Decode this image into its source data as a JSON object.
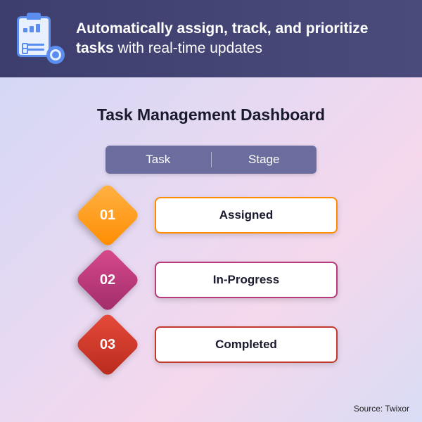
{
  "header": {
    "bold_part": "Automatically assign, track, and prioritize tasks",
    "rest_part": " with real-time updates",
    "bg_gradient_from": "#3d3e6d",
    "bg_gradient_to": "#4a4b7a"
  },
  "body": {
    "title": "Task Management Dashboard",
    "table_header_bg": "#6b6d9e",
    "columns": {
      "col1": "Task",
      "col2": "Stage"
    },
    "rows": [
      {
        "num": "01",
        "label": "Assigned",
        "diamond_gradient_from": "#ffb347",
        "diamond_gradient_to": "#ff8c00",
        "border_color": "#ff8c00",
        "connector_color": "#ff8c00"
      },
      {
        "num": "02",
        "label": "In-Progress",
        "diamond_gradient_from": "#d94a8c",
        "diamond_gradient_to": "#a02c6b",
        "border_color": "#b83a7a",
        "connector_color": "#b83a7a"
      },
      {
        "num": "03",
        "label": "Completed",
        "diamond_gradient_from": "#e74c3c",
        "diamond_gradient_to": "#b8291b",
        "border_color": "#c0392b",
        "connector_color": "#c0392b"
      }
    ]
  },
  "source_label": "Source: Twixor",
  "background_gradient": {
    "stops": [
      "#d4d8f5",
      "#e8d9f2",
      "#f5d8ec",
      "#d8dcf5"
    ]
  }
}
